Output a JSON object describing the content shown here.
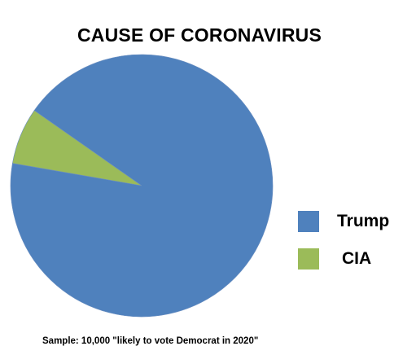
{
  "chart_data": {
    "type": "pie",
    "title": "CAUSE OF CORONAVIRUS",
    "slices": [
      {
        "label": "Trump",
        "value": 93,
        "color": "#4f81bd"
      },
      {
        "label": "CIA",
        "value": 7,
        "color": "#9bbb59"
      }
    ],
    "legend_position": "right",
    "note": "Sample: 10,000 \"likely to vote Democrat in 2020\""
  }
}
